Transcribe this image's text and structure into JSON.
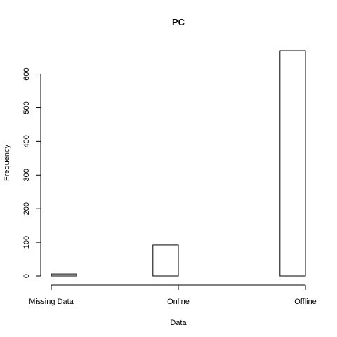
{
  "chart_data": {
    "type": "bar",
    "title": "PC",
    "xlabel": "Data",
    "ylabel": "Frequency",
    "categories": [
      "Missing Data",
      "Online",
      "Offline"
    ],
    "bars": [
      {
        "x_start": 0.0,
        "x_end": 0.2,
        "value": 6
      },
      {
        "x_start": 0.8,
        "x_end": 1.0,
        "value": 92
      },
      {
        "x_start": 1.8,
        "x_end": 2.0,
        "value": 670
      }
    ],
    "x_ticks": [
      0,
      1,
      2
    ],
    "y_ticks": [
      0,
      100,
      200,
      300,
      400,
      500,
      600
    ],
    "xlim": [
      0,
      2
    ],
    "ylim": [
      0,
      670
    ],
    "grid": false
  }
}
